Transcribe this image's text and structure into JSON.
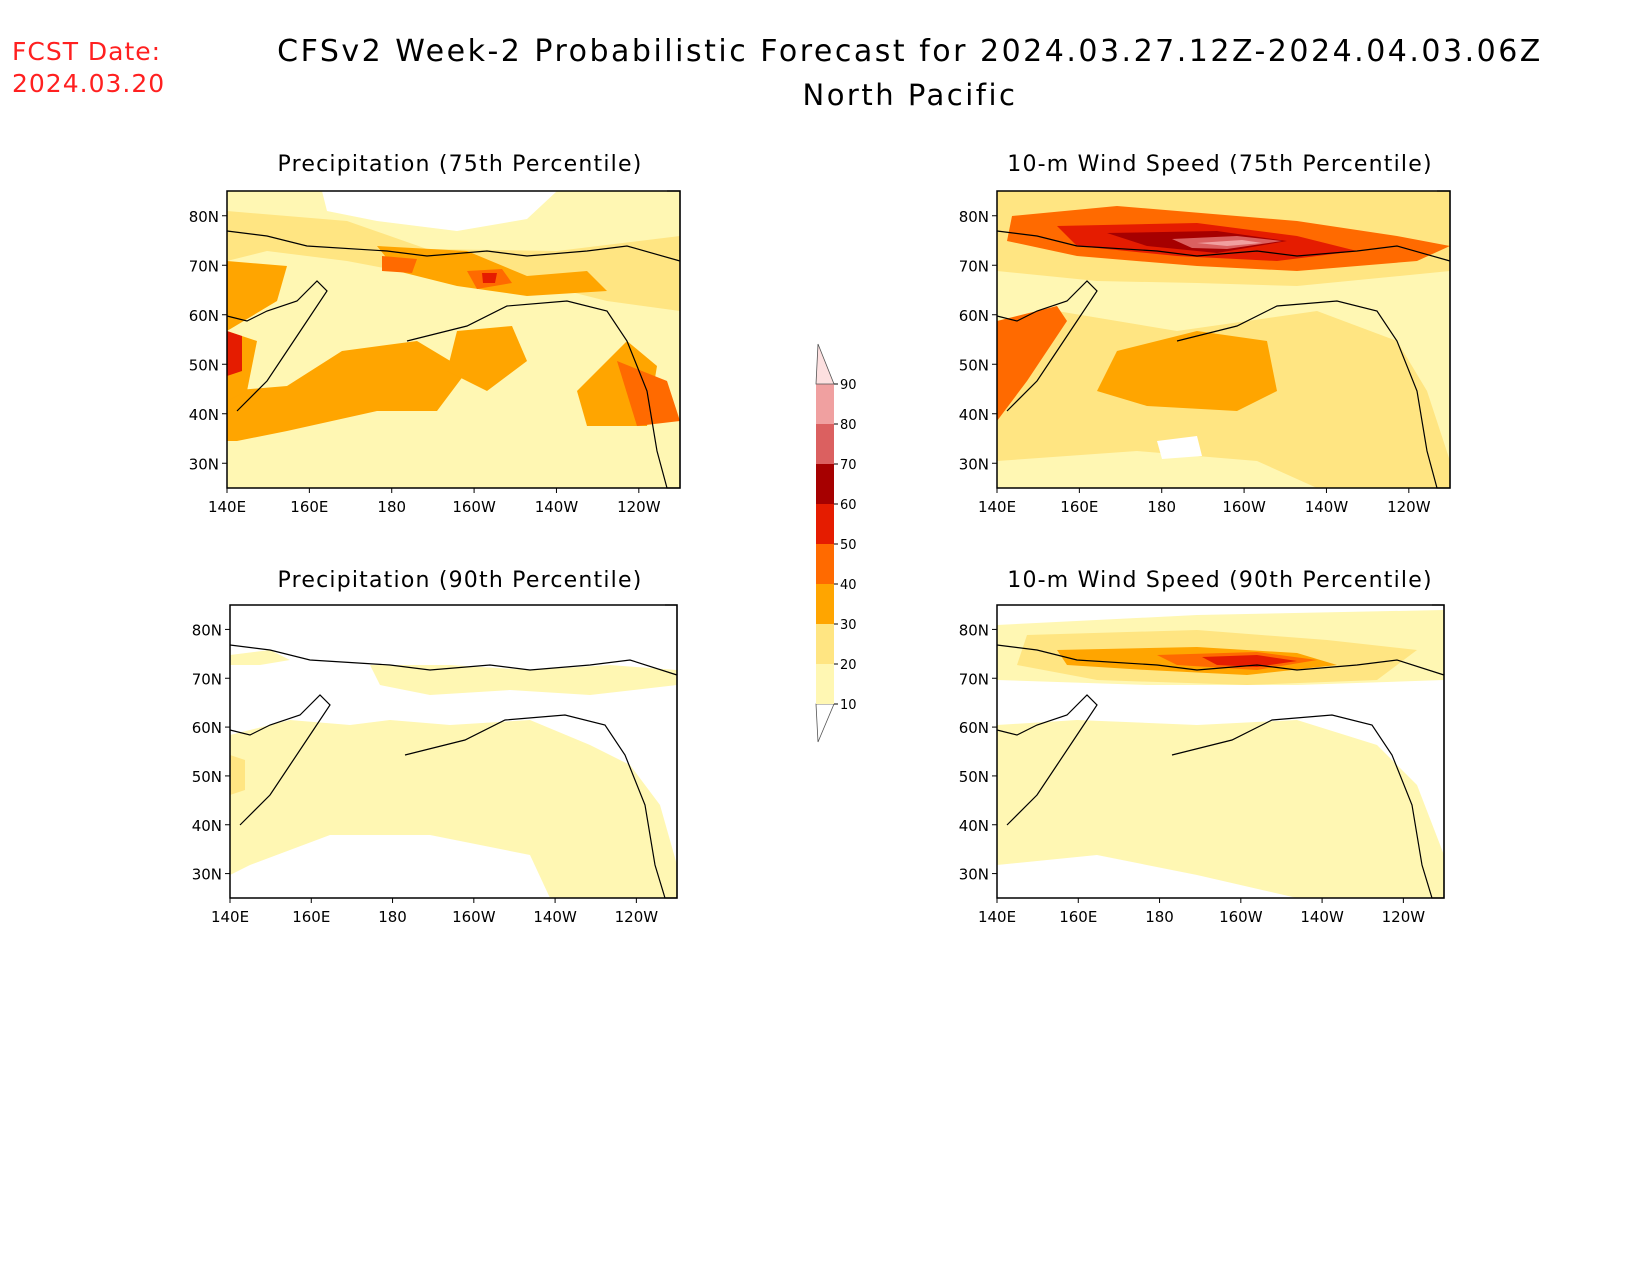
{
  "header": {
    "fcst_label": "FCST Date:",
    "fcst_date": "2024.03.20",
    "title": "CFSv2 Week-2 Probabilistic Forecast for 2024.03.27.12Z-2024.04.03.06Z",
    "region": "North Pacific"
  },
  "axes": {
    "lat_labels": [
      "80N",
      "70N",
      "60N",
      "50N",
      "40N",
      "30N"
    ],
    "lon_labels": [
      "140E",
      "160E",
      "180",
      "160W",
      "140W",
      "120W"
    ]
  },
  "panels": [
    {
      "id": "precip75",
      "title": "Precipitation (75th Percentile)"
    },
    {
      "id": "wind75",
      "title": "10-m Wind Speed (75th Percentile)"
    },
    {
      "id": "precip90",
      "title": "Precipitation (90th Percentile)"
    },
    {
      "id": "wind90",
      "title": "10-m Wind Speed (90th Percentile)"
    }
  ],
  "colorbar": {
    "levels": [
      "10",
      "20",
      "30",
      "40",
      "50",
      "60",
      "70",
      "80",
      "90"
    ],
    "colors": [
      "#fff7b3",
      "#ffe582",
      "#ffa500",
      "#ff6a00",
      "#e51c00",
      "#a60000",
      "#db6060",
      "#f0a0a0",
      "#fde0e0"
    ]
  }
}
